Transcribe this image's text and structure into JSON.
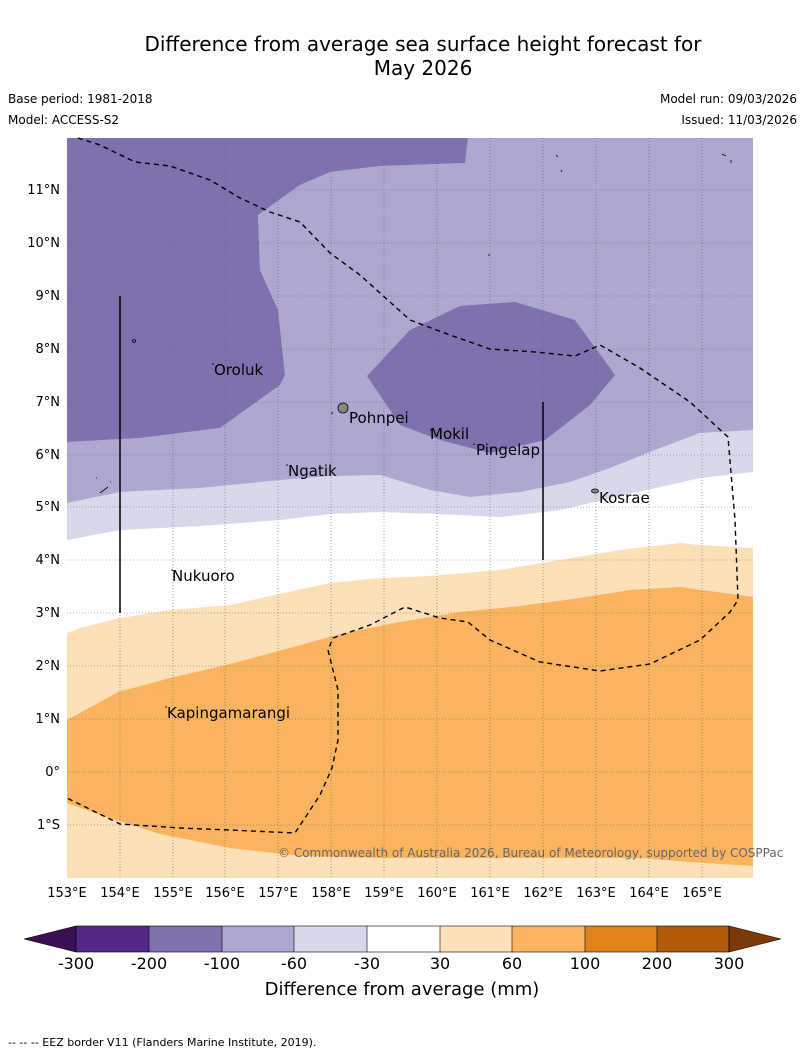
{
  "title": {
    "line1": "Difference from average sea surface height forecast for",
    "line2": "May 2026"
  },
  "meta": {
    "base_period": "Base period: 1981-2018",
    "model": "Model: ACCESS-S2",
    "model_run": "Model run: 09/03/2026",
    "issued": "Issued: 11/03/2026"
  },
  "map": {
    "lat_labels": [
      "11°N",
      "10°N",
      "9°N",
      "8°N",
      "7°N",
      "6°N",
      "5°N",
      "4°N",
      "3°N",
      "2°N",
      "1°N",
      "0°",
      "1°S"
    ],
    "lon_labels": [
      "153°E",
      "154°E",
      "155°E",
      "156°E",
      "157°E",
      "158°E",
      "159°E",
      "160°E",
      "161°E",
      "162°E",
      "163°E",
      "164°E",
      "165°E"
    ],
    "places": {
      "oroluk": "Oroluk",
      "pohnpei": "Pohnpei",
      "mokil": "Mokil",
      "pingelap": "Pingelap",
      "ngatik": "Ngatik",
      "kosrae": "Kosrae",
      "nukuoro": "Nukuoro",
      "kapingamarangi": "Kapingamarangi"
    },
    "credit": "© Commonwealth of Australia 2026, Bureau of Meteorology, supported by COSPPac"
  },
  "colors": {
    "m300": "#3b0f53",
    "m200": "#55298a",
    "m100": "#7e71ad",
    "m60": "#ada8d0",
    "m30": "#d8d8eb",
    "zero": "#ffffff",
    "p30": "#fde0b7",
    "p60": "#fab45f",
    "p100": "#e08318",
    "p200": "#b45a0b",
    "p300": "#7c3a09"
  },
  "colorbar": {
    "ticks": [
      "-300",
      "-200",
      "-100",
      "-60",
      "-30",
      "30",
      "60",
      "100",
      "200",
      "300"
    ],
    "label": "Difference from average (mm)"
  },
  "footnote": "--  --  -- EEZ border V11 (Flanders Marine Institute, 2019)."
}
